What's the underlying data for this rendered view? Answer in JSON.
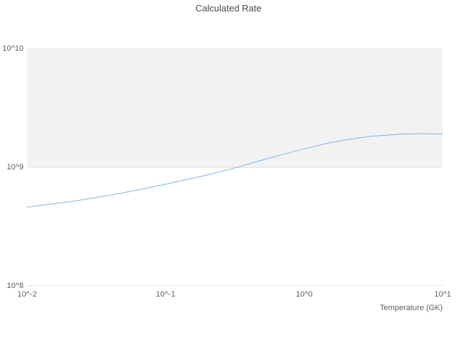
{
  "chart_data": {
    "type": "line",
    "title": "Calculated Rate",
    "xlabel": "Temperature (GK)",
    "ylabel": "",
    "x_scale": "log",
    "y_scale": "log",
    "xlim": [
      0.01,
      10
    ],
    "ylim": [
      100000000.0,
      10000000000.0
    ],
    "x_tick_labels": [
      "10^-2",
      "10^-1",
      "10^0",
      "10^1"
    ],
    "y_tick_labels": [
      "10^10",
      "10^9",
      "10^8"
    ],
    "grid": true,
    "legend": false,
    "plot_band": {
      "from": 1000000000.0,
      "to": 10000000000.0,
      "color": "#f2f2f2"
    },
    "series": [
      {
        "name": "Calculated Rate",
        "color": "#7cb5ec",
        "x": [
          0.01,
          0.015,
          0.02,
          0.03,
          0.05,
          0.07,
          0.1,
          0.15,
          0.2,
          0.3,
          0.5,
          0.7,
          1.0,
          1.5,
          2.0,
          3.0,
          5.0,
          7.0,
          10.0
        ],
        "y": [
          460000000.0,
          490000000.0,
          510000000.0,
          550000000.0,
          610000000.0,
          660000000.0,
          720000000.0,
          800000000.0,
          860000000.0,
          970000000.0,
          1150000000.0,
          1280000000.0,
          1430000000.0,
          1600000000.0,
          1700000000.0,
          1820000000.0,
          1900000000.0,
          1920000000.0,
          1900000000.0
        ]
      }
    ]
  }
}
